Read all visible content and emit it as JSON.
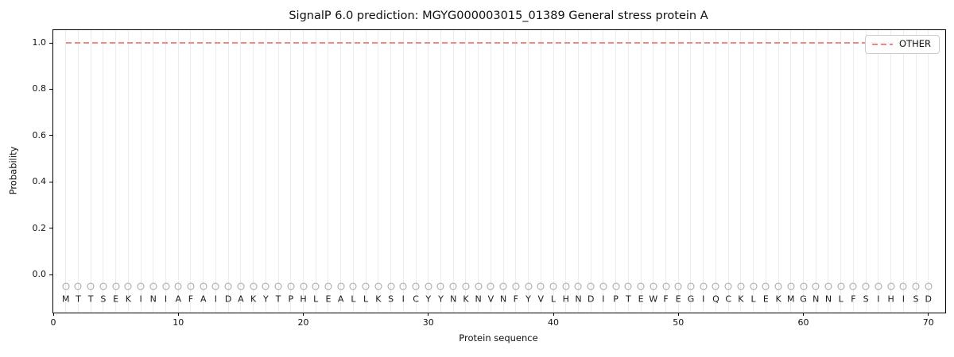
{
  "figure": {
    "title": "SignalP 6.0 prediction: MGYG000003015_01389 General stress protein A",
    "xlabel": "Protein sequence",
    "ylabel": "Probability"
  },
  "legend": {
    "position": "upper-right",
    "items": [
      {
        "label": "OTHER",
        "line_color": "#f28585",
        "line_style": "dashed"
      }
    ]
  },
  "chart_data": {
    "type": "line",
    "title": "SignalP 6.0 prediction: MGYG000003015_01389 General stress protein A",
    "xlabel": "Protein sequence",
    "ylabel": "Probability",
    "xlim": [
      0,
      71.35
    ],
    "ylim": [
      -0.164,
      1.055
    ],
    "xticks": [
      0,
      10,
      20,
      30,
      40,
      50,
      60,
      70
    ],
    "yticks": [
      "0.0",
      "0.2",
      "0.4",
      "0.6",
      "0.8",
      "1.0"
    ],
    "grid": {
      "vertical_per_residue": true,
      "horizontal": false,
      "color": "#ececec"
    },
    "legend_position": "upper right",
    "series": [
      {
        "name": "OTHER",
        "style": "dashed",
        "color": "#f28585",
        "constant_y": 1.0,
        "x_start": 1,
        "x_end": 70
      }
    ],
    "sequence": "MTTSEKINIAFAIDAKYTPHLEALLKSICYYNKNVNFYVLHNDIPTEWFEGIQCKLEKMGNNLFSIHISD",
    "sequence_length": 70,
    "sequence_marker": {
      "shape": "open-circle",
      "edge_color": "#a3a3a3",
      "y_value": -0.05
    },
    "sequence_letter_y": -0.105,
    "colors": {
      "axis": "#000000",
      "background": "#ffffff",
      "letter": "#1a1a1a"
    }
  }
}
